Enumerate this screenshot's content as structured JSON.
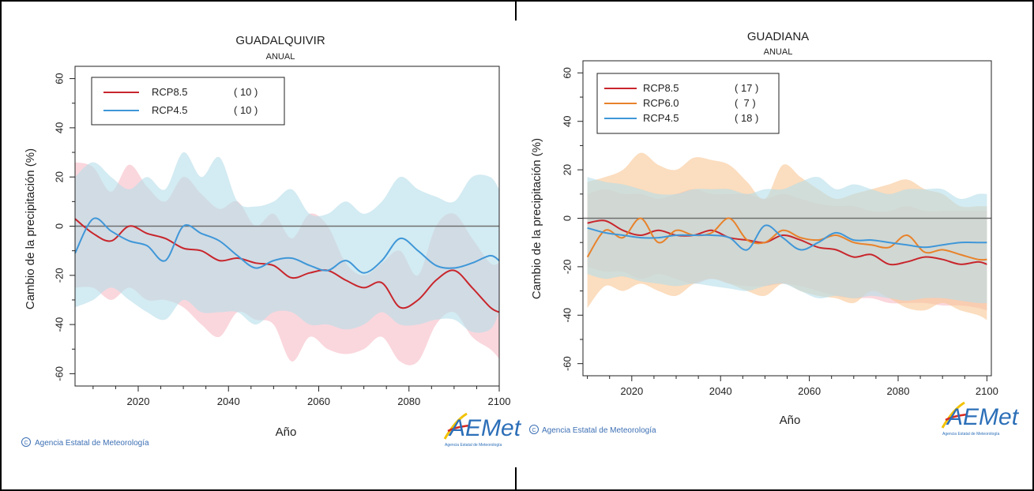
{
  "colors": {
    "rcp85": "#c8262c",
    "rcp60": "#e8822a",
    "rcp45": "#3f97d8",
    "rcp85_band": "#f7bcc6",
    "rcp60_band": "#f8c795",
    "rcp45_band": "#b6dde9",
    "zero_line": "#707070",
    "credit_text": "#3c6fb4",
    "logo_blue": "#2c6fb8",
    "logo_yellow": "#f2c200",
    "logo_red": "#d72a1f"
  },
  "credit": "Agencia Estatal de Meteorología",
  "logo": {
    "text": "AEMet",
    "subtitle": "Agencia Estatal de Meteorología"
  },
  "chart_data": [
    {
      "type": "line",
      "title": "GUADALQUIVIR",
      "subtitle": "ANUAL",
      "xlabel": "Año",
      "ylabel": "Cambio de la precipitación (%)",
      "xlim": [
        2006,
        2100
      ],
      "ylim": [
        -65,
        65
      ],
      "xticks": [
        2020,
        2040,
        2060,
        2080,
        2100
      ],
      "yticks": [
        -60,
        -40,
        -20,
        0,
        20,
        40,
        60
      ],
      "grid": false,
      "legend_position": "top-left",
      "x": [
        2006,
        2010,
        2014,
        2018,
        2022,
        2026,
        2030,
        2034,
        2038,
        2042,
        2046,
        2050,
        2054,
        2058,
        2062,
        2066,
        2070,
        2074,
        2078,
        2082,
        2086,
        2090,
        2094,
        2098,
        2100
      ],
      "series": [
        {
          "name": "RCP8.5",
          "count": "( 10 )",
          "color_key": "rcp85",
          "values": [
            3,
            -3,
            -6,
            0,
            -3,
            -5,
            -9,
            -10,
            -14,
            -13,
            -15,
            -16,
            -21,
            -19,
            -18,
            -22,
            -25,
            -23,
            -33,
            -30,
            -22,
            -18,
            -25,
            -33,
            -35
          ],
          "band_upper": [
            26,
            24,
            14,
            25,
            16,
            10,
            20,
            13,
            7,
            10,
            0,
            5,
            -5,
            5,
            0,
            -15,
            -20,
            -15,
            -10,
            -20,
            0,
            5,
            -5,
            -15,
            -15
          ],
          "band_lower": [
            -25,
            -25,
            -30,
            -25,
            -30,
            -30,
            -33,
            -40,
            -45,
            -35,
            -38,
            -40,
            -55,
            -45,
            -50,
            -52,
            -50,
            -45,
            -55,
            -55,
            -40,
            -35,
            -45,
            -50,
            -54
          ]
        },
        {
          "name": "RCP4.5",
          "count": "( 10 )",
          "color_key": "rcp45",
          "values": [
            -11,
            3,
            -2,
            -6,
            -8,
            -14,
            0,
            -3,
            -6,
            -12,
            -17,
            -14,
            -13,
            -16,
            -18,
            -14,
            -19,
            -14,
            -5,
            -10,
            -16,
            -17,
            -15,
            -12,
            -14
          ],
          "band_upper": [
            20,
            26,
            20,
            15,
            20,
            15,
            30,
            20,
            28,
            10,
            8,
            10,
            15,
            5,
            5,
            10,
            5,
            10,
            20,
            15,
            12,
            10,
            20,
            20,
            15
          ],
          "band_lower": [
            -33,
            -30,
            -25,
            -30,
            -35,
            -38,
            -30,
            -35,
            -35,
            -35,
            -40,
            -35,
            -35,
            -40,
            -40,
            -42,
            -40,
            -35,
            -40,
            -40,
            -38,
            -38,
            -43,
            -42,
            -35
          ]
        }
      ]
    },
    {
      "type": "line",
      "title": "GUADIANA",
      "subtitle": "ANUAL",
      "xlabel": "Año",
      "ylabel": "Cambio de la precipitación (%)",
      "xlim": [
        2009,
        2101
      ],
      "ylim": [
        -65,
        65
      ],
      "xticks": [
        2020,
        2040,
        2060,
        2080,
        2100
      ],
      "yticks": [
        -60,
        -40,
        -20,
        0,
        20,
        40,
        60
      ],
      "grid": false,
      "legend_position": "top-left",
      "x": [
        2010,
        2014,
        2018,
        2022,
        2026,
        2030,
        2034,
        2038,
        2042,
        2046,
        2050,
        2054,
        2058,
        2062,
        2066,
        2070,
        2074,
        2078,
        2082,
        2086,
        2090,
        2094,
        2098,
        2100
      ],
      "series": [
        {
          "name": "RCP8.5",
          "count": "( 17 )",
          "color_key": "rcp85",
          "values": [
            -2,
            -1,
            -5,
            -7,
            -5,
            -7,
            -7,
            -5,
            -8,
            -9,
            -10,
            -7,
            -9,
            -12,
            -13,
            -16,
            -15,
            -19,
            -18,
            -16,
            -17,
            -19,
            -18,
            -19
          ],
          "band_upper": [
            10,
            12,
            10,
            10,
            8,
            10,
            12,
            10,
            10,
            10,
            8,
            10,
            8,
            6,
            5,
            5,
            3,
            3,
            5,
            3,
            3,
            3,
            3,
            3
          ],
          "band_lower": [
            -20,
            -22,
            -22,
            -25,
            -23,
            -25,
            -27,
            -25,
            -27,
            -28,
            -28,
            -27,
            -28,
            -30,
            -32,
            -33,
            -33,
            -35,
            -35,
            -35,
            -36,
            -36,
            -37,
            -38
          ]
        },
        {
          "name": "RCP6.0",
          "count": "(  7 )",
          "color_key": "rcp60",
          "values": [
            -16,
            -5,
            -8,
            0,
            -10,
            -5,
            -7,
            -6,
            0,
            -9,
            -10,
            -5,
            -8,
            -9,
            -7,
            -10,
            -11,
            -12,
            -7,
            -14,
            -13,
            -15,
            -17,
            -17
          ],
          "band_upper": [
            15,
            17,
            20,
            27,
            22,
            20,
            25,
            24,
            22,
            15,
            8,
            22,
            17,
            12,
            8,
            10,
            12,
            14,
            16,
            12,
            10,
            5,
            5,
            5
          ],
          "band_lower": [
            -37,
            -28,
            -30,
            -27,
            -30,
            -32,
            -27,
            -25,
            -27,
            -30,
            -32,
            -27,
            -30,
            -32,
            -33,
            -35,
            -30,
            -33,
            -37,
            -38,
            -35,
            -38,
            -40,
            -42
          ]
        },
        {
          "name": "RCP4.5",
          "count": "( 18 )",
          "color_key": "rcp45",
          "values": [
            -4,
            -6,
            -7,
            -8,
            -8,
            -7,
            -7,
            -7,
            -8,
            -13,
            -3,
            -8,
            -13,
            -10,
            -6,
            -9,
            -9,
            -10,
            -11,
            -12,
            -11,
            -10,
            -10,
            -10
          ],
          "band_upper": [
            17,
            15,
            14,
            12,
            10,
            10,
            12,
            12,
            12,
            10,
            12,
            12,
            15,
            17,
            12,
            14,
            12,
            10,
            12,
            12,
            12,
            8,
            10,
            10
          ],
          "band_lower": [
            -23,
            -25,
            -24,
            -26,
            -27,
            -28,
            -27,
            -28,
            -29,
            -30,
            -28,
            -27,
            -30,
            -33,
            -32,
            -33,
            -32,
            -33,
            -34,
            -33,
            -33,
            -34,
            -35,
            -35
          ]
        }
      ]
    }
  ]
}
